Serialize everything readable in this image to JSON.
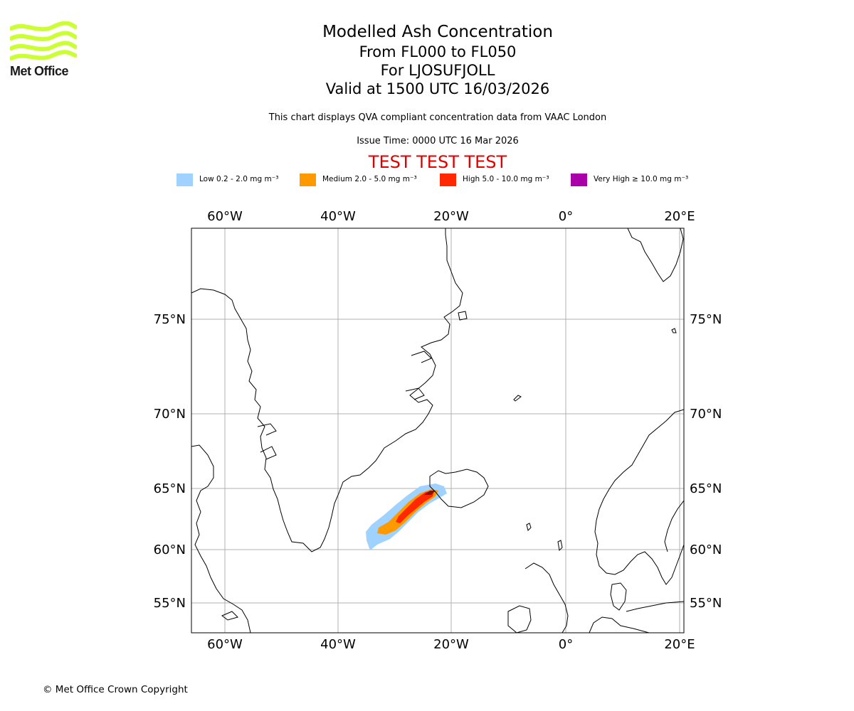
{
  "logo": {
    "brand": "Met Office",
    "color": "#ccff33"
  },
  "titles": {
    "main": "Modelled Ash Concentration",
    "levels": "From FL000 to FL050",
    "volcano": "For LJOSUFJOLL",
    "valid": "Valid at 1500 UTC 16/03/2026"
  },
  "subtitle": "This chart displays QVA compliant concentration data from VAAC London",
  "issue_time": "Issue Time: 0000 UTC 16 Mar 2026",
  "test_banner": "TEST TEST TEST",
  "legend": [
    {
      "label": "Low 0.2 - 2.0 mg m⁻³",
      "color": "#a0d2ff"
    },
    {
      "label": "Medium 2.0 - 5.0 mg m⁻³",
      "color": "#ff9900"
    },
    {
      "label": "High 5.0 - 10.0 mg m⁻³",
      "color": "#ff2800"
    },
    {
      "label": "Very High  ≥  10.0 mg m⁻³",
      "color": "#aa00aa"
    }
  ],
  "map": {
    "lon_ticks": [
      "60°W",
      "40°W",
      "20°W",
      "0°",
      "20°E"
    ],
    "lat_ticks": [
      "75°N",
      "70°N",
      "65°N",
      "60°N",
      "55°N"
    ],
    "grid": true
  },
  "copyright": "© Met Office Crown Copyright"
}
